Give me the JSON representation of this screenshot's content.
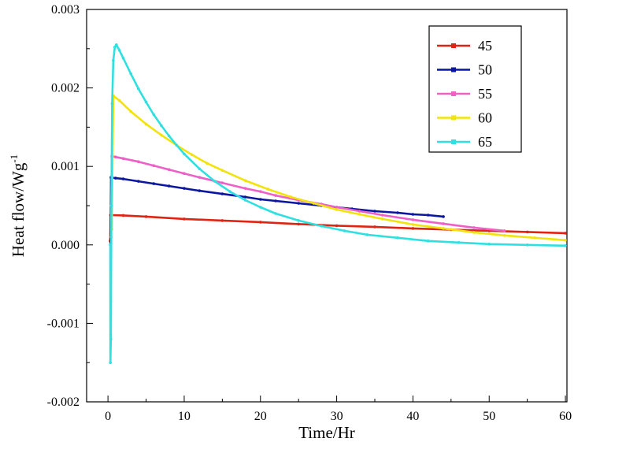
{
  "figure": {
    "background": "#ffffff"
  },
  "chart_data": {
    "type": "line",
    "title": "",
    "xlabel": "Time/Hr",
    "ylabel": "Heat flow/Wg⁻¹",
    "ylabel_base": "Heat flow/Wg",
    "ylabel_sup": "-1",
    "xlim": [
      -2.8,
      60.2
    ],
    "ylim": [
      -0.002,
      0.003
    ],
    "x_ticks": [
      0,
      10,
      20,
      30,
      40,
      50,
      60
    ],
    "x_tick_labels": [
      "0",
      "10",
      "20",
      "30",
      "40",
      "50",
      "60"
    ],
    "y_ticks": [
      -0.002,
      -0.001,
      0,
      0.001,
      0.002,
      0.003
    ],
    "y_tick_labels": [
      "-0.002",
      "-0.001",
      "0.000",
      "0.001",
      "0.002",
      "0.003"
    ],
    "grid": false,
    "legend_position": "upper-right",
    "legend_labels": [
      "45",
      "50",
      "55",
      "60",
      "65"
    ],
    "series": [
      {
        "name": "45",
        "color": "#e02413",
        "points": [
          [
            0.3,
            5e-05
          ],
          [
            0.35,
            0.00038
          ],
          [
            2,
            0.000375
          ],
          [
            5,
            0.00036
          ],
          [
            10,
            0.00033
          ],
          [
            15,
            0.00031
          ],
          [
            20,
            0.00029
          ],
          [
            25,
            0.000265
          ],
          [
            30,
            0.000245
          ],
          [
            35,
            0.00023
          ],
          [
            40,
            0.00021
          ],
          [
            45,
            0.000195
          ],
          [
            50,
            0.00018
          ],
          [
            55,
            0.000165
          ],
          [
            60,
            0.00015
          ]
        ]
      },
      {
        "name": "50",
        "color": "#0a16a0",
        "points": [
          [
            0.35,
            0.0
          ],
          [
            0.4,
            0.00086
          ],
          [
            1,
            0.00085
          ],
          [
            2,
            0.00084
          ],
          [
            4,
            0.00081
          ],
          [
            6,
            0.00078
          ],
          [
            8,
            0.00075
          ],
          [
            10,
            0.00072
          ],
          [
            12,
            0.00069
          ],
          [
            15,
            0.00065
          ],
          [
            18,
            0.00061
          ],
          [
            20,
            0.00058
          ],
          [
            22,
            0.00056
          ],
          [
            25,
            0.00053
          ],
          [
            28,
            0.0005
          ],
          [
            30,
            0.00048
          ],
          [
            32,
            0.00046
          ],
          [
            35,
            0.00043
          ],
          [
            38,
            0.00041
          ],
          [
            40,
            0.00039
          ],
          [
            42,
            0.00038
          ],
          [
            44,
            0.00036
          ]
        ]
      },
      {
        "name": "55",
        "color": "#ef5fc8",
        "points": [
          [
            0.4,
            0.0001
          ],
          [
            0.5,
            0.00113
          ],
          [
            1,
            0.00112
          ],
          [
            2,
            0.0011
          ],
          [
            4,
            0.00106
          ],
          [
            6,
            0.00101
          ],
          [
            8,
            0.00096
          ],
          [
            10,
            0.00091
          ],
          [
            12,
            0.00086
          ],
          [
            15,
            0.00079
          ],
          [
            18,
            0.00072
          ],
          [
            20,
            0.00068
          ],
          [
            22,
            0.00063
          ],
          [
            25,
            0.00057
          ],
          [
            28,
            0.00052
          ],
          [
            30,
            0.00048
          ],
          [
            33,
            0.00043
          ],
          [
            36,
            0.00038
          ],
          [
            40,
            0.00032
          ],
          [
            44,
            0.00027
          ],
          [
            48,
            0.00022
          ],
          [
            52,
            0.00018
          ]
        ]
      },
      {
        "name": "60",
        "color": "#f2e30c",
        "points": [
          [
            0.5,
            0.0002
          ],
          [
            0.7,
            0.0019
          ],
          [
            1.5,
            0.00184
          ],
          [
            3,
            0.0017
          ],
          [
            5,
            0.00154
          ],
          [
            7,
            0.0014
          ],
          [
            9,
            0.00127
          ],
          [
            11,
            0.00115
          ],
          [
            13,
            0.00104
          ],
          [
            15,
            0.00095
          ],
          [
            18,
            0.00082
          ],
          [
            21,
            0.00071
          ],
          [
            24,
            0.00061
          ],
          [
            27,
            0.00053
          ],
          [
            30,
            0.00045
          ],
          [
            33,
            0.00039
          ],
          [
            36,
            0.00033
          ],
          [
            40,
            0.00026
          ],
          [
            44,
            0.00021
          ],
          [
            48,
            0.00016
          ],
          [
            52,
            0.00012
          ],
          [
            56,
            9e-05
          ],
          [
            60,
            6e-05
          ]
        ]
      },
      {
        "name": "65",
        "color": "#2fe0e0",
        "points": [
          [
            0.3,
            0.0
          ],
          [
            0.32,
            -0.0015
          ],
          [
            0.38,
            -0.0012
          ],
          [
            0.45,
            0.0005
          ],
          [
            0.55,
            0.0018
          ],
          [
            0.7,
            0.00235
          ],
          [
            0.9,
            0.00252
          ],
          [
            1.1,
            0.00255
          ],
          [
            1.5,
            0.00248
          ],
          [
            2,
            0.00238
          ],
          [
            3,
            0.00218
          ],
          [
            4,
            0.00199
          ],
          [
            5,
            0.00182
          ],
          [
            6,
            0.00166
          ],
          [
            7,
            0.00152
          ],
          [
            8,
            0.00139
          ],
          [
            9,
            0.00127
          ],
          [
            10,
            0.00116
          ],
          [
            12,
            0.00097
          ],
          [
            14,
            0.00081
          ],
          [
            16,
            0.00068
          ],
          [
            18,
            0.00057
          ],
          [
            20,
            0.00048
          ],
          [
            22,
            0.0004
          ],
          [
            25,
            0.00031
          ],
          [
            28,
            0.00024
          ],
          [
            31,
            0.00018
          ],
          [
            34,
            0.00013
          ],
          [
            38,
            9e-05
          ],
          [
            42,
            5e-05
          ],
          [
            46,
            3e-05
          ],
          [
            50,
            1e-05
          ],
          [
            55,
            0.0
          ],
          [
            60,
            -1e-05
          ]
        ]
      }
    ]
  }
}
